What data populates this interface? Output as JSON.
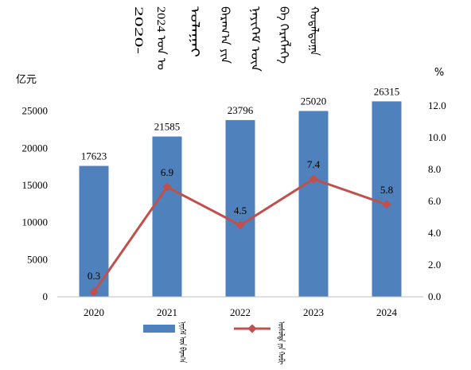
{
  "chart_data": {
    "type": "bar+line",
    "title_columns": [
      "ᠬᠤᠳᠠᠯᠳᠤᠭᠠ",
      "ᠪᠡ ᠬᠡᠷᠡᠭᠯᠡᠭᠡ",
      "ᠨᠡᠶᠢᠭᠡᠮ ᠦᠨ",
      "ᠪᠠᠷᠠᠭ᠎ᠠ ᠶᠢᠨ",
      "ᠤᠯᠠᠭᠠᠢ",
      "2024 ᠣᠨ ᠤ",
      "2020-"
    ],
    "categories": [
      "2020",
      "2021",
      "2022",
      "2023",
      "2024"
    ],
    "left_axis": {
      "unit": "亿元",
      "ticks": [
        "0",
        "5000",
        "10000",
        "15000",
        "20000",
        "25000"
      ],
      "range": [
        0,
        30000
      ]
    },
    "right_axis": {
      "unit": "%",
      "ticks": [
        "0.0",
        "2.0",
        "4.0",
        "6.0",
        "8.0",
        "10.0",
        "12.0"
      ],
      "range": [
        0,
        14
      ]
    },
    "series": [
      {
        "name": "ᠨᠡᠶᠢᠭᠡᠮ ᠦᠨ ᠪᠠᠷᠠᠭ᠎ᠠ",
        "type": "bar",
        "axis": "left",
        "color": "#4f81bd",
        "values": [
          17623,
          21585,
          23796,
          25020,
          26315
        ],
        "labels": [
          "17623",
          "21585",
          "23796",
          "25020",
          "26315"
        ]
      },
      {
        "name": "ᠥᠰᠦᠯᠲᠡ ᠶᠢᠨ ᠬᠤᠪᠢ",
        "type": "line",
        "axis": "right",
        "color": "#c0504d",
        "values": [
          0.3,
          6.9,
          4.5,
          7.4,
          5.8
        ],
        "labels": [
          "0.3",
          "6.9",
          "4.5",
          "7.4",
          "5.8"
        ]
      }
    ],
    "grid": false,
    "legend": "bottom"
  }
}
